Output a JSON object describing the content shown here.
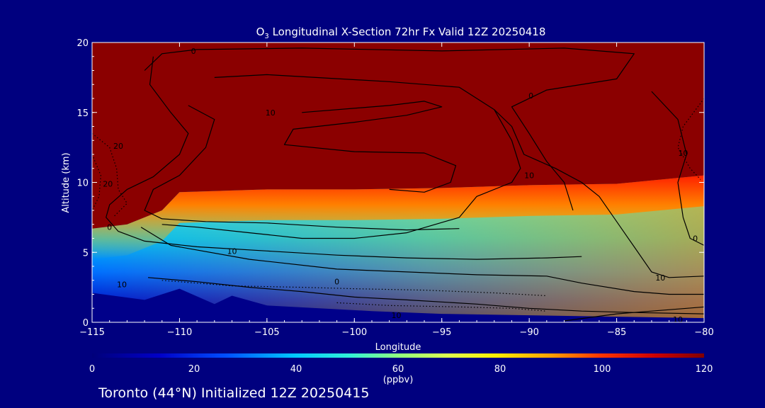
{
  "chart_data": {
    "type": "heatmap",
    "title": {
      "prefix": "O",
      "subscript": "3",
      "rest": " Longitudinal X-Section 72hr  Fx Valid 12Z 20250418"
    },
    "xlabel": "Longitude",
    "ylabel": "Altitude (km)",
    "xlim": [
      -115,
      -80
    ],
    "ylim": [
      0,
      20
    ],
    "x_ticks": [
      {
        "value": -115,
        "label": "−115"
      },
      {
        "value": -110,
        "label": "−110"
      },
      {
        "value": -105,
        "label": "−105"
      },
      {
        "value": -100,
        "label": "−100"
      },
      {
        "value": -95,
        "label": "−95"
      },
      {
        "value": -90,
        "label": "−90"
      },
      {
        "value": -85,
        "label": "−85"
      },
      {
        "value": -80,
        "label": "−80"
      }
    ],
    "y_ticks": [
      {
        "value": 0,
        "label": "0"
      },
      {
        "value": 5,
        "label": "5"
      },
      {
        "value": 10,
        "label": "10"
      },
      {
        "value": 15,
        "label": "15"
      },
      {
        "value": 20,
        "label": "20"
      }
    ],
    "colorbar": {
      "min": 0,
      "max": 120,
      "unit": "(ppbv)",
      "ticks": [
        {
          "value": 0,
          "label": "0"
        },
        {
          "value": 20,
          "label": "20"
        },
        {
          "value": 40,
          "label": "40"
        },
        {
          "value": 60,
          "label": "60"
        },
        {
          "value": 80,
          "label": "80"
        },
        {
          "value": 100,
          "label": "100"
        },
        {
          "value": 120,
          "label": "120"
        }
      ]
    },
    "tropopause_km": [
      [
        -115,
        6.7
      ],
      [
        -113,
        7.0
      ],
      [
        -111,
        8.0
      ],
      [
        -110,
        9.3
      ],
      [
        -105,
        9.5
      ],
      [
        -100,
        9.5
      ],
      [
        -95,
        9.6
      ],
      [
        -90,
        9.8
      ],
      [
        -85,
        9.9
      ],
      [
        -80,
        10.5
      ]
    ],
    "terrain_km": [
      [
        -115,
        2.1
      ],
      [
        -112,
        1.6
      ],
      [
        -110,
        2.4
      ],
      [
        -108,
        1.3
      ],
      [
        -107,
        1.9
      ],
      [
        -105,
        1.2
      ],
      [
        -102,
        1.0
      ],
      [
        -99,
        0.8
      ],
      [
        -95,
        0.6
      ],
      [
        -90,
        0.5
      ],
      [
        -85,
        0.4
      ],
      [
        -80,
        0.3
      ]
    ],
    "contours": [
      {
        "name": "c0-upper",
        "style": "solid",
        "points": [
          [
            -112,
            18
          ],
          [
            -111,
            19.2
          ],
          [
            -109,
            19.5
          ],
          [
            -103,
            19.6
          ],
          [
            -95,
            19.4
          ],
          [
            -88,
            19.6
          ],
          [
            -84,
            19.2
          ],
          [
            -85,
            17.4
          ],
          [
            -89,
            16.6
          ],
          [
            -91,
            15.4
          ],
          [
            -90,
            13.5
          ],
          [
            -89,
            11.5
          ],
          [
            -88,
            10
          ],
          [
            -87.5,
            8
          ]
        ]
      },
      {
        "name": "c0-mid",
        "style": "solid",
        "points": [
          [
            -108,
            17.5
          ],
          [
            -105,
            17.7
          ],
          [
            -98,
            17.2
          ],
          [
            -94,
            16.8
          ],
          [
            -92,
            15.2
          ],
          [
            -91,
            13
          ],
          [
            -90.5,
            11
          ],
          [
            -91,
            10
          ],
          [
            -93,
            9
          ],
          [
            -94,
            7.5
          ],
          [
            -97,
            6.4
          ],
          [
            -100,
            6
          ],
          [
            -103,
            6
          ],
          [
            -106,
            6.4
          ],
          [
            -109,
            6.8
          ],
          [
            -111,
            7
          ]
        ]
      },
      {
        "name": "c10-left",
        "style": "solid",
        "points": [
          [
            -109.5,
            15.5
          ],
          [
            -108,
            14.5
          ],
          [
            -108.5,
            12.5
          ],
          [
            -110,
            10.5
          ],
          [
            -111.5,
            9.5
          ],
          [
            -112,
            8
          ],
          [
            -111,
            7.4
          ],
          [
            -108.5,
            7.2
          ],
          [
            -105,
            7.1
          ],
          [
            -101,
            6.8
          ],
          [
            -97,
            6.6
          ],
          [
            -94,
            6.7
          ]
        ]
      },
      {
        "name": "c-inner-ring",
        "style": "solid",
        "points": [
          [
            -103,
            15
          ],
          [
            -98,
            15.5
          ],
          [
            -96,
            15.8
          ],
          [
            -95,
            15.4
          ],
          [
            -97,
            14.8
          ],
          [
            -100,
            14.3
          ],
          [
            -103.5,
            13.8
          ],
          [
            -104,
            12.7
          ],
          [
            -100,
            12.2
          ],
          [
            -96,
            12.1
          ],
          [
            -94.2,
            11.2
          ],
          [
            -94.5,
            10
          ],
          [
            -96,
            9.3
          ],
          [
            -98,
            9.5
          ]
        ]
      },
      {
        "name": "c10-right",
        "style": "solid",
        "points": [
          [
            -92,
            15.2
          ],
          [
            -91,
            14
          ],
          [
            -90.3,
            12
          ],
          [
            -88.5,
            11
          ],
          [
            -87,
            10
          ],
          [
            -86,
            9
          ],
          [
            -85,
            7.2
          ],
          [
            -84,
            5.4
          ],
          [
            -83,
            3.6
          ],
          [
            -82,
            3.2
          ],
          [
            -80,
            3.3
          ]
        ]
      },
      {
        "name": "c-right-vertical",
        "style": "solid",
        "points": [
          [
            -83,
            16.5
          ],
          [
            -81.5,
            14.5
          ],
          [
            -81,
            12
          ],
          [
            -81.5,
            10
          ],
          [
            -81.2,
            7.5
          ],
          [
            -80.8,
            6
          ],
          [
            -80,
            5.5
          ]
        ]
      },
      {
        "name": "c-left-outer",
        "style": "solid",
        "points": [
          [
            -111.5,
            19
          ],
          [
            -111.7,
            17
          ],
          [
            -110.5,
            15
          ],
          [
            -109.5,
            13.5
          ],
          [
            -110,
            12
          ],
          [
            -111.5,
            10.4
          ],
          [
            -113,
            9.5
          ],
          [
            -114,
            8.4
          ],
          [
            -114.2,
            7.5
          ],
          [
            -113.5,
            6.5
          ],
          [
            -112,
            5.8
          ],
          [
            -109,
            5.4
          ],
          [
            -105,
            5.1
          ],
          [
            -101,
            4.8
          ],
          [
            -97,
            4.6
          ],
          [
            -93,
            4.5
          ],
          [
            -89,
            4.6
          ],
          [
            -87,
            4.7
          ]
        ]
      },
      {
        "name": "c-mid-low",
        "style": "solid",
        "points": [
          [
            -112.2,
            6.8
          ],
          [
            -110.5,
            5.5
          ],
          [
            -106,
            4.5
          ],
          [
            -101,
            3.8
          ],
          [
            -97,
            3.6
          ],
          [
            -93,
            3.4
          ],
          [
            -89,
            3.3
          ],
          [
            -87,
            2.8
          ],
          [
            -84,
            2.2
          ],
          [
            -82,
            2
          ],
          [
            -80,
            2
          ]
        ]
      },
      {
        "name": "c-low-1",
        "style": "solid",
        "points": [
          [
            -111.8,
            3.2
          ],
          [
            -109,
            2.9
          ],
          [
            -106,
            2.5
          ],
          [
            -103,
            2.2
          ],
          [
            -100,
            1.8
          ],
          [
            -97,
            1.6
          ],
          [
            -93,
            1.3
          ],
          [
            -90,
            1.0
          ],
          [
            -87,
            0.8
          ],
          [
            -84,
            0.7
          ],
          [
            -80,
            0.6
          ]
        ]
      },
      {
        "name": "c-low-2",
        "style": "solid",
        "points": [
          [
            -88,
            0.1
          ],
          [
            -85,
            0.6
          ],
          [
            -83,
            0.8
          ],
          [
            -81,
            1.0
          ],
          [
            -80,
            1.1
          ]
        ]
      },
      {
        "name": "c-dot-left-1",
        "style": "dotted",
        "points": [
          [
            -115,
            13.5
          ],
          [
            -114,
            12.5
          ],
          [
            -113.6,
            11
          ],
          [
            -113.5,
            9.5
          ],
          [
            -113,
            8.5
          ],
          [
            -113.8,
            7.5
          ]
        ]
      },
      {
        "name": "c-dot-left-2",
        "style": "dotted",
        "points": [
          [
            -115,
            12
          ],
          [
            -114.5,
            10.5
          ],
          [
            -114.6,
            9
          ],
          [
            -115,
            8
          ]
        ]
      },
      {
        "name": "c-dot-right",
        "style": "dotted",
        "points": [
          [
            -80,
            16
          ],
          [
            -81.2,
            14
          ],
          [
            -81.5,
            12.5
          ],
          [
            -80.8,
            11
          ],
          [
            -80.2,
            10.2
          ]
        ]
      },
      {
        "name": "c-dot-low-1",
        "style": "dotted",
        "points": [
          [
            -111,
            3
          ],
          [
            -107,
            2.6
          ],
          [
            -103,
            2.5
          ],
          [
            -100,
            2.4
          ],
          [
            -96,
            2.3
          ],
          [
            -92,
            2.1
          ],
          [
            -89,
            1.9
          ]
        ]
      },
      {
        "name": "c-dot-low-2",
        "style": "dotted",
        "points": [
          [
            -101,
            1.4
          ],
          [
            -98,
            1.2
          ],
          [
            -94,
            1.1
          ],
          [
            -91,
            1.0
          ],
          [
            -89,
            0.8
          ]
        ]
      }
    ],
    "contour_labels": [
      {
        "x": -109.2,
        "y": 19.4,
        "text": "0"
      },
      {
        "x": -104.8,
        "y": 15.0,
        "text": "10"
      },
      {
        "x": -89.9,
        "y": 16.2,
        "text": "0"
      },
      {
        "x": -113.5,
        "y": 12.6,
        "text": "20"
      },
      {
        "x": -114.1,
        "y": 9.9,
        "text": "20"
      },
      {
        "x": -90,
        "y": 10.5,
        "text": "10"
      },
      {
        "x": -81.2,
        "y": 12.1,
        "text": "10"
      },
      {
        "x": -114,
        "y": 6.8,
        "text": "0"
      },
      {
        "x": -107,
        "y": 5.1,
        "text": "10"
      },
      {
        "x": -80.5,
        "y": 6.0,
        "text": "0"
      },
      {
        "x": -101,
        "y": 2.9,
        "text": "0"
      },
      {
        "x": -113.3,
        "y": 2.7,
        "text": "10"
      },
      {
        "x": -82.5,
        "y": 3.2,
        "text": "10"
      },
      {
        "x": -97.6,
        "y": 0.5,
        "text": "10"
      },
      {
        "x": -81.5,
        "y": 0.2,
        "text": "10"
      }
    ],
    "annotation": "Toronto (44°N) Initialized 12Z 20250415"
  }
}
